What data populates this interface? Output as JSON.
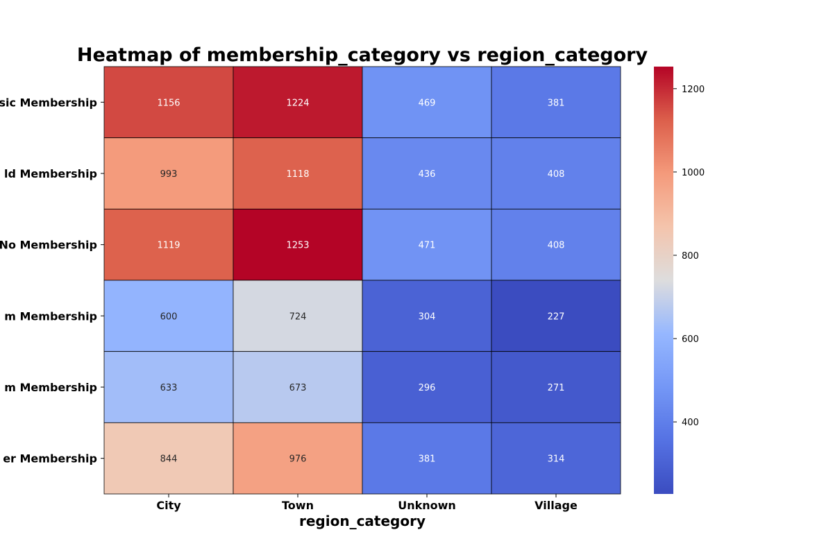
{
  "chart_data": {
    "type": "heatmap",
    "title": "Heatmap of membership_category vs region_category",
    "xlabel": "region_category",
    "ylabel": "",
    "x_categories": [
      "City",
      "Town",
      "Unknown",
      "Village"
    ],
    "y_categories_visible": [
      "sic Membership",
      "ld Membership",
      "No Membership",
      "m Membership",
      "m Membership",
      "er Membership"
    ],
    "values": [
      [
        1156,
        1224,
        469,
        381
      ],
      [
        993,
        1118,
        436,
        408
      ],
      [
        1119,
        1253,
        471,
        408
      ],
      [
        600,
        724,
        304,
        227
      ],
      [
        633,
        673,
        296,
        271
      ],
      [
        844,
        976,
        381,
        314
      ]
    ],
    "colormap": "coolwarm",
    "vmin": 227,
    "vmax": 1253,
    "colorbar_ticks": [
      400,
      600,
      800,
      1000,
      1200
    ],
    "annotations": true,
    "cell_border_color": "#000000",
    "light_text_color": "#ffffff",
    "dark_text_color": "#262626"
  }
}
